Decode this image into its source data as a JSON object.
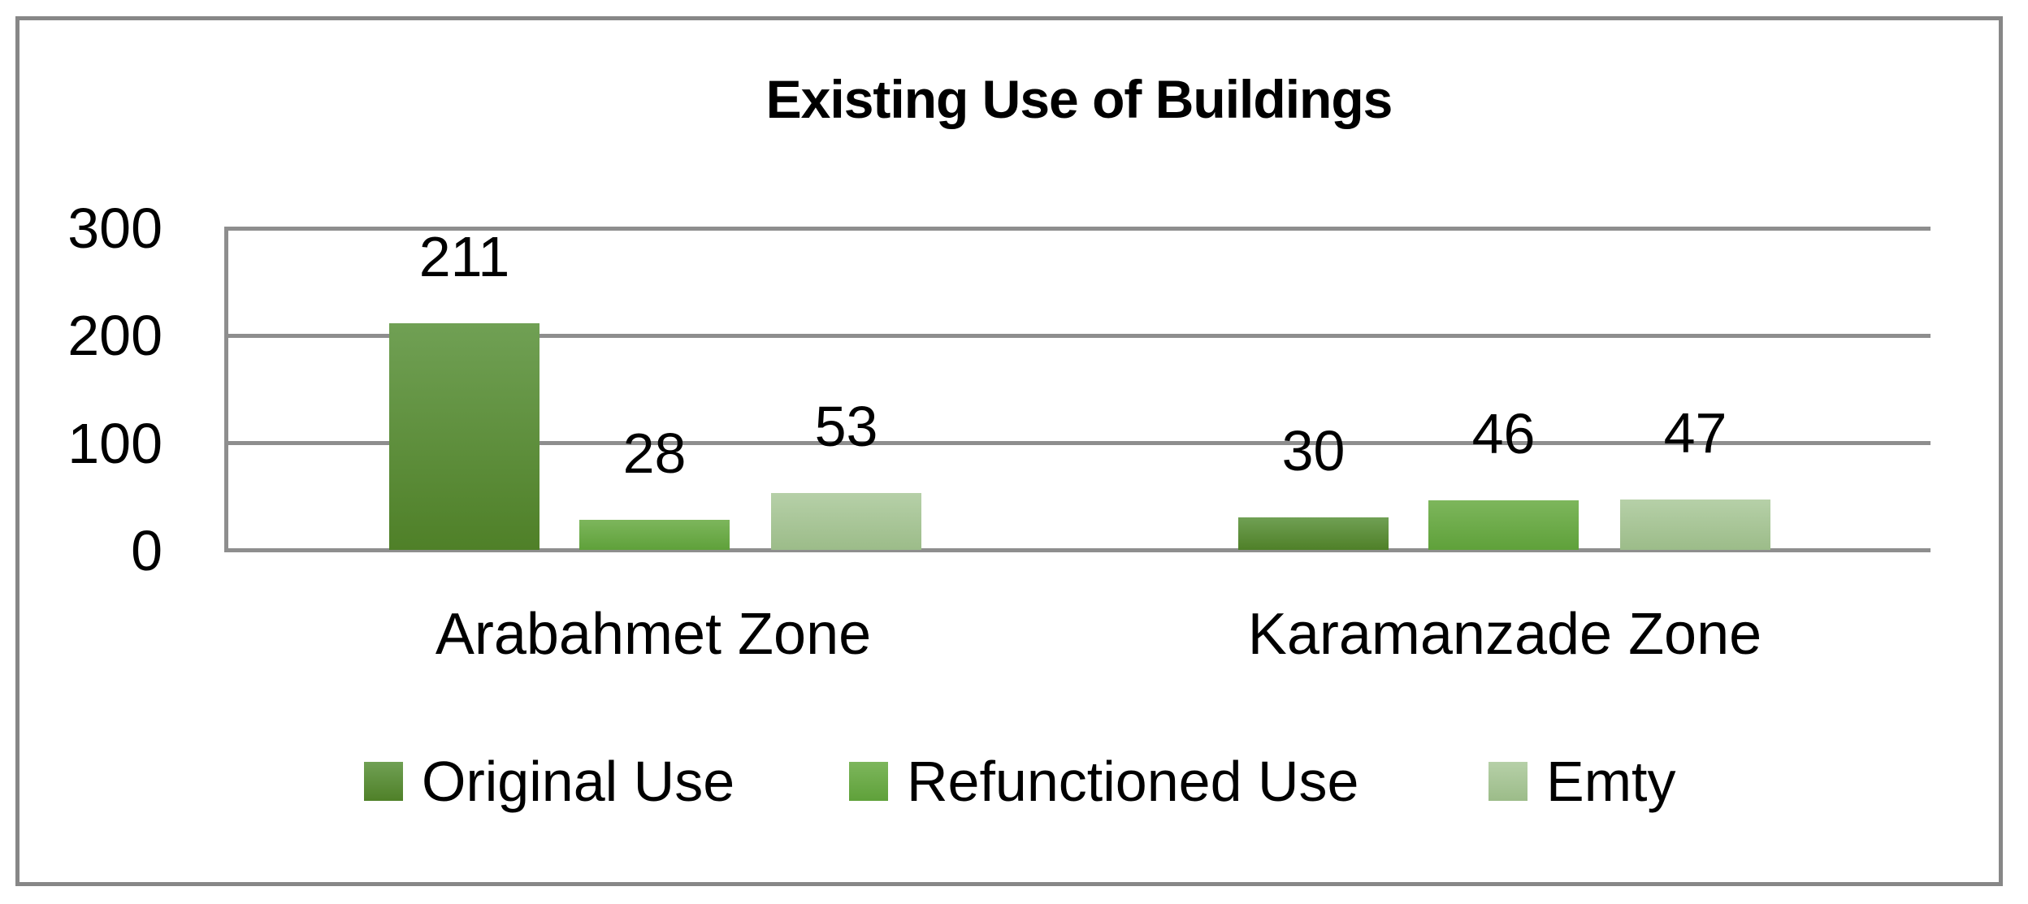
{
  "chart_data": {
    "type": "bar",
    "title": "Existing Use of Buildings",
    "categories": [
      "Arabahmet Zone",
      "Karamanzade Zone"
    ],
    "series": [
      {
        "name": "Original Use",
        "values": [
          211,
          30
        ],
        "color_top": "#70a054",
        "color_bottom": "#4f8028"
      },
      {
        "name": "Refunctioned Use",
        "values": [
          28,
          46
        ],
        "color_top": "#7db65c",
        "color_bottom": "#5fa13a"
      },
      {
        "name": "Emty",
        "values": [
          53,
          47
        ],
        "color_top": "#b6d0a8",
        "color_bottom": "#9cbc89"
      }
    ],
    "y_ticks": [
      "300",
      "200",
      "100",
      "0"
    ],
    "ylim": [
      0,
      300
    ],
    "grid": true,
    "legend_position": "bottom",
    "colors": {
      "gridline": "#8e8e8e",
      "frame_border": "#878787",
      "text": "#000000"
    }
  }
}
